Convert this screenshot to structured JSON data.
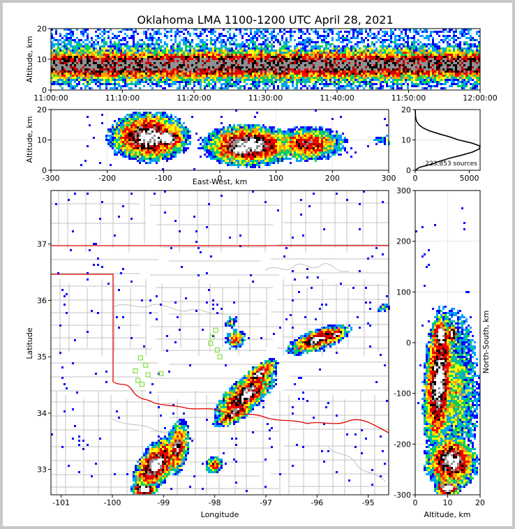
{
  "title": "Oklahoma LMA 1100-1200 UTC April 28, 2021",
  "colors": {
    "density_scale": [
      "#0000ff",
      "#00a0ff",
      "#00d060",
      "#ffff00",
      "#ffa000",
      "#ff0000",
      "#c00000",
      "#000000",
      "#909090",
      "#ffffff"
    ],
    "state_border": "#e00000",
    "county_lines": "#c0c0c0",
    "stations": "#80e040"
  },
  "time_height": {
    "ylabel": "Altitude, km",
    "yticks": [
      "0",
      "10",
      "20"
    ],
    "xticks": [
      "11:00:00",
      "11:10:00",
      "11:20:00",
      "11:30:00",
      "11:40:00",
      "11:50:00",
      "12:00:00"
    ]
  },
  "ew_panel": {
    "xlabel": "East-West, km",
    "ylabel": "Altitude, km",
    "xticks": [
      "-300",
      "-200",
      "-100",
      "0",
      "100",
      "200",
      "300"
    ],
    "yticks": [
      "0",
      "10",
      "20"
    ]
  },
  "histogram": {
    "sources_label": "223,853 sources",
    "xticks": [
      "0",
      "5000"
    ],
    "yticks": [
      "0",
      "10",
      "20"
    ]
  },
  "map": {
    "xlabel": "Longitude",
    "ylabel": "Latitude",
    "xticks": [
      "-101",
      "-100",
      "-99",
      "-98",
      "-97",
      "-96",
      "-95"
    ],
    "yticks": [
      "33",
      "34",
      "35",
      "36",
      "37"
    ]
  },
  "ns_panel": {
    "xlabel": "Altitude, km",
    "ylabel": "North-South, km",
    "xticks": [
      "0",
      "10",
      "20"
    ],
    "yticks": [
      "300",
      "200",
      "100",
      "0",
      "-100",
      "-200",
      "-300"
    ]
  },
  "chart_data": {
    "type": "heatmap",
    "title": "Oklahoma LMA 1100-1200 UTC April 28, 2021",
    "total_sources": 223853,
    "time_range": [
      "11:00:00",
      "12:00:00"
    ],
    "altitude_km_range": [
      0,
      20
    ],
    "east_west_km_range": [
      -300,
      300
    ],
    "north_south_km_range": [
      -300,
      300
    ],
    "longitude_range": [
      -101.2,
      -94.6
    ],
    "latitude_range": [
      32.55,
      37.95
    ],
    "altitude_histogram": {
      "altitude_km": [
        0,
        1,
        2,
        3,
        4,
        5,
        6,
        7,
        8,
        9,
        10,
        11,
        12,
        13,
        14,
        15,
        16,
        17,
        18,
        19,
        20
      ],
      "sources": [
        0,
        400,
        1500,
        2300,
        3200,
        4300,
        5300,
        5900,
        6000,
        5200,
        4000,
        3200,
        2200,
        1300,
        700,
        350,
        150,
        60,
        25,
        10,
        0
      ],
      "xlim": [
        0,
        6000
      ]
    },
    "storm_regions": [
      {
        "lon": -99.2,
        "lat": 33.1,
        "ew_km": -90,
        "ns_km": -250
      },
      {
        "lon": -97.6,
        "lat": 34.3,
        "ew_km": 60,
        "ns_km": -120
      },
      {
        "lon": -97.3,
        "lat": 34.9,
        "ew_km": 80,
        "ns_km": -40
      },
      {
        "lon": -96.0,
        "lat": 35.3,
        "ew_km": 180,
        "ns_km": 20
      },
      {
        "lon": -97.5,
        "lat": 35.4,
        "ew_km": 50,
        "ns_km": 10
      },
      {
        "lon": -98.0,
        "lat": 33.0,
        "ew_km": 20,
        "ns_km": -230
      }
    ],
    "stations": [
      {
        "lon": -99.45,
        "lat": 34.98
      },
      {
        "lon": -99.35,
        "lat": 34.85
      },
      {
        "lon": -99.55,
        "lat": 34.75
      },
      {
        "lon": -99.3,
        "lat": 34.68
      },
      {
        "lon": -99.5,
        "lat": 34.58
      },
      {
        "lon": -99.42,
        "lat": 34.51
      },
      {
        "lon": -99.05,
        "lat": 34.7
      },
      {
        "lon": -97.98,
        "lat": 35.47
      },
      {
        "lon": -98.05,
        "lat": 35.35
      },
      {
        "lon": -98.08,
        "lat": 35.24
      },
      {
        "lon": -97.95,
        "lat": 35.12
      },
      {
        "lon": -97.9,
        "lat": 35.0
      }
    ]
  }
}
